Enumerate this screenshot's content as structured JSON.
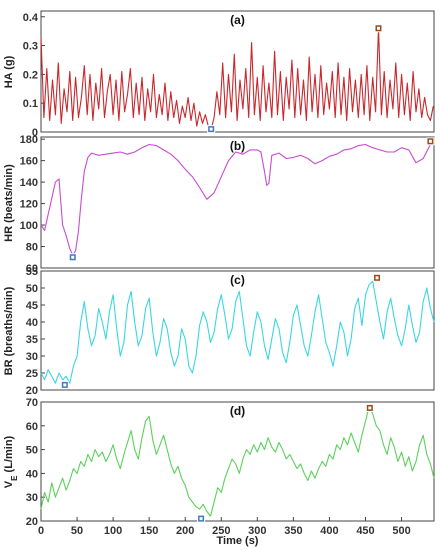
{
  "chart_data": [
    {
      "type": "line",
      "panel_label": "(a)",
      "ylabel": "HA (g)",
      "xlim": [
        0,
        545
      ],
      "ylim": [
        0,
        0.42
      ],
      "yticks": [
        0,
        0.1,
        0.2,
        0.3,
        0.4
      ],
      "color": "#c8282d",
      "series": [
        {
          "x": [
            0,
            4,
            8,
            12,
            16,
            20,
            24,
            28,
            32,
            36,
            40,
            44,
            48,
            52,
            56,
            60,
            64,
            68,
            72,
            76,
            80,
            84,
            88,
            92,
            96,
            100,
            104,
            108,
            112,
            116,
            120,
            124,
            128,
            132,
            136,
            140,
            144,
            148,
            152,
            156,
            160,
            164,
            168,
            172,
            176,
            180,
            184,
            188,
            192,
            196,
            200,
            204,
            208,
            212,
            216,
            220,
            224,
            228,
            232,
            236,
            240,
            244,
            248,
            252,
            256,
            260,
            264,
            268,
            272,
            276,
            280,
            284,
            288,
            292,
            296,
            300,
            304,
            308,
            312,
            316,
            320,
            324,
            328,
            332,
            336,
            340,
            344,
            348,
            352,
            356,
            360,
            364,
            368,
            372,
            376,
            380,
            384,
            388,
            392,
            396,
            400,
            404,
            408,
            412,
            416,
            420,
            424,
            428,
            432,
            436,
            440,
            444,
            448,
            452,
            456,
            460,
            464,
            468,
            472,
            476,
            480,
            484,
            488,
            492,
            496,
            500,
            504,
            508,
            512,
            516,
            520,
            524,
            528,
            532,
            536,
            540,
            544
          ],
          "y": [
            0.33,
            0.05,
            0.22,
            0.04,
            0.18,
            0.06,
            0.24,
            0.03,
            0.15,
            0.07,
            0.21,
            0.04,
            0.19,
            0.05,
            0.12,
            0.23,
            0.06,
            0.2,
            0.04,
            0.17,
            0.08,
            0.22,
            0.05,
            0.14,
            0.2,
            0.06,
            0.18,
            0.04,
            0.21,
            0.07,
            0.13,
            0.22,
            0.05,
            0.17,
            0.06,
            0.19,
            0.04,
            0.15,
            0.07,
            0.2,
            0.05,
            0.13,
            0.06,
            0.17,
            0.04,
            0.14,
            0.05,
            0.11,
            0.03,
            0.09,
            0.05,
            0.12,
            0.04,
            0.1,
            0.02,
            0.07,
            0.03,
            0.06,
            0.02,
            0.01,
            0.05,
            0.14,
            0.06,
            0.24,
            0.05,
            0.2,
            0.07,
            0.27,
            0.04,
            0.18,
            0.08,
            0.22,
            0.05,
            0.31,
            0.06,
            0.19,
            0.04,
            0.23,
            0.07,
            0.17,
            0.05,
            0.28,
            0.06,
            0.21,
            0.04,
            0.19,
            0.08,
            0.25,
            0.05,
            0.22,
            0.06,
            0.18,
            0.04,
            0.26,
            0.07,
            0.2,
            0.05,
            0.23,
            0.06,
            0.17,
            0.08,
            0.21,
            0.05,
            0.24,
            0.06,
            0.19,
            0.04,
            0.22,
            0.07,
            0.18,
            0.05,
            0.2,
            0.06,
            0.23,
            0.04,
            0.19,
            0.07,
            0.36,
            0.06,
            0.21,
            0.05,
            0.18,
            0.08,
            0.24,
            0.05,
            0.2,
            0.06,
            0.17,
            0.04,
            0.21,
            0.07,
            0.15,
            0.05,
            0.12,
            0.06,
            0.04,
            0.09
          ]
        }
      ],
      "markers": [
        {
          "x": 236,
          "y": 0.01,
          "color": "#3c78c8"
        },
        {
          "x": 468,
          "y": 0.36,
          "color": "#9a4a1a"
        }
      ]
    },
    {
      "type": "line",
      "panel_label": "(b)",
      "ylabel": "HR (beats/min)",
      "xlim": [
        0,
        545
      ],
      "ylim": [
        60,
        182
      ],
      "yticks": [
        60,
        80,
        100,
        120,
        140,
        160,
        180
      ],
      "color": "#c84bd2",
      "series": [
        {
          "x": [
            0,
            5,
            10,
            15,
            20,
            25,
            30,
            35,
            40,
            44,
            48,
            52,
            56,
            60,
            65,
            70,
            80,
            90,
            100,
            110,
            120,
            130,
            140,
            150,
            160,
            170,
            180,
            190,
            200,
            210,
            220,
            230,
            240,
            250,
            260,
            270,
            280,
            290,
            300,
            305,
            310,
            313,
            316,
            320,
            330,
            340,
            350,
            360,
            370,
            380,
            390,
            400,
            410,
            420,
            430,
            440,
            450,
            460,
            470,
            480,
            490,
            500,
            510,
            520,
            530,
            540,
            545
          ],
          "y": [
            100,
            95,
            110,
            125,
            140,
            143,
            100,
            90,
            78,
            72,
            76,
            95,
            125,
            150,
            163,
            167,
            165,
            166,
            167,
            168,
            166,
            168,
            172,
            175,
            174,
            170,
            166,
            160,
            152,
            145,
            135,
            124,
            130,
            145,
            160,
            168,
            166,
            170,
            170,
            168,
            150,
            137,
            139,
            165,
            167,
            162,
            163,
            165,
            162,
            157,
            160,
            164,
            166,
            170,
            171,
            174,
            175,
            172,
            170,
            168,
            168,
            172,
            170,
            158,
            162,
            175,
            178
          ]
        }
      ],
      "markers": [
        {
          "x": 44,
          "y": 70,
          "color": "#3c78c8"
        },
        {
          "x": 540,
          "y": 178,
          "color": "#9a4a1a"
        }
      ]
    },
    {
      "type": "line",
      "panel_label": "(c)",
      "ylabel": "BR (breaths/min)",
      "xlim": [
        0,
        545
      ],
      "ylim": [
        20,
        55
      ],
      "yticks": [
        20,
        25,
        30,
        35,
        40,
        45,
        50,
        55
      ],
      "color": "#3ad7e0",
      "series": [
        {
          "x": [
            0,
            5,
            10,
            15,
            20,
            25,
            30,
            35,
            40,
            45,
            50,
            55,
            60,
            65,
            70,
            75,
            80,
            85,
            90,
            95,
            100,
            105,
            110,
            115,
            120,
            125,
            130,
            135,
            140,
            145,
            150,
            155,
            160,
            165,
            170,
            175,
            180,
            185,
            190,
            195,
            200,
            205,
            210,
            215,
            220,
            225,
            230,
            235,
            240,
            245,
            250,
            255,
            260,
            265,
            270,
            275,
            280,
            285,
            290,
            295,
            300,
            305,
            310,
            315,
            320,
            325,
            330,
            335,
            340,
            345,
            350,
            355,
            360,
            365,
            370,
            375,
            380,
            385,
            390,
            395,
            400,
            405,
            410,
            415,
            420,
            425,
            430,
            435,
            440,
            445,
            450,
            455,
            460,
            465,
            470,
            475,
            480,
            485,
            490,
            495,
            500,
            505,
            510,
            515,
            520,
            525,
            530,
            535,
            540,
            545
          ],
          "y": [
            25,
            23,
            26,
            24,
            22,
            25,
            23,
            24,
            22,
            27,
            30,
            40,
            46,
            38,
            33,
            36,
            44,
            40,
            35,
            43,
            48,
            38,
            30,
            34,
            45,
            49,
            40,
            33,
            36,
            44,
            47,
            37,
            30,
            34,
            41,
            38,
            31,
            27,
            30,
            38,
            35,
            27,
            25,
            30,
            39,
            43,
            40,
            34,
            37,
            44,
            48,
            42,
            35,
            38,
            46,
            49,
            41,
            33,
            30,
            37,
            43,
            40,
            33,
            29,
            35,
            41,
            38,
            31,
            28,
            34,
            42,
            45,
            39,
            33,
            30,
            36,
            43,
            48,
            41,
            34,
            31,
            27,
            33,
            40,
            37,
            30,
            35,
            44,
            47,
            39,
            48,
            51,
            52,
            46,
            40,
            35,
            43,
            47,
            41,
            36,
            33,
            38,
            45,
            39,
            34,
            37,
            46,
            50,
            44,
            40
          ]
        }
      ],
      "markers": [
        {
          "x": 33,
          "y": 21.5,
          "color": "#3c78c8"
        },
        {
          "x": 466,
          "y": 53,
          "color": "#9a4a1a"
        }
      ]
    },
    {
      "type": "line",
      "panel_label": "(d)",
      "ylabel": "V_E (L/min)",
      "xlabel": "Time (s)",
      "xlim": [
        0,
        545
      ],
      "ylim": [
        20,
        70
      ],
      "yticks": [
        20,
        30,
        40,
        50,
        60,
        70
      ],
      "xticks": [
        0,
        50,
        100,
        150,
        200,
        250,
        300,
        350,
        400,
        450,
        500
      ],
      "color": "#5ad25a",
      "series": [
        {
          "x": [
            0,
            5,
            10,
            15,
            20,
            25,
            30,
            35,
            40,
            45,
            50,
            55,
            60,
            65,
            70,
            75,
            80,
            85,
            90,
            95,
            100,
            105,
            110,
            115,
            120,
            125,
            130,
            135,
            140,
            145,
            150,
            155,
            160,
            165,
            170,
            175,
            180,
            185,
            190,
            195,
            200,
            205,
            210,
            215,
            220,
            225,
            230,
            235,
            240,
            245,
            250,
            255,
            260,
            265,
            270,
            275,
            280,
            285,
            290,
            295,
            300,
            305,
            310,
            315,
            320,
            325,
            330,
            335,
            340,
            345,
            350,
            355,
            360,
            365,
            370,
            375,
            380,
            385,
            390,
            395,
            400,
            405,
            410,
            415,
            420,
            425,
            430,
            435,
            440,
            445,
            450,
            455,
            460,
            465,
            470,
            475,
            480,
            485,
            490,
            495,
            500,
            505,
            510,
            515,
            520,
            525,
            530,
            535,
            540,
            545
          ],
          "y": [
            25,
            32,
            28,
            36,
            30,
            34,
            38,
            33,
            37,
            42,
            40,
            45,
            43,
            48,
            45,
            50,
            47,
            49,
            45,
            48,
            52,
            46,
            42,
            48,
            53,
            58,
            50,
            46,
            55,
            62,
            64,
            54,
            48,
            52,
            56,
            50,
            44,
            40,
            43,
            38,
            35,
            30,
            28,
            26,
            25,
            27,
            24,
            22,
            28,
            34,
            32,
            38,
            42,
            46,
            44,
            40,
            46,
            50,
            48,
            52,
            49,
            53,
            50,
            55,
            51,
            49,
            53,
            50,
            46,
            48,
            45,
            42,
            44,
            40,
            37,
            41,
            38,
            42,
            45,
            43,
            48,
            46,
            52,
            50,
            55,
            52,
            57,
            53,
            49,
            56,
            62,
            68,
            65,
            60,
            58,
            52,
            48,
            55,
            51,
            45,
            49,
            43,
            47,
            41,
            45,
            52,
            56,
            48,
            44,
            38
          ]
        }
      ],
      "markers": [
        {
          "x": 222,
          "y": 21,
          "color": "#3c78c8"
        },
        {
          "x": 456,
          "y": 67.5,
          "color": "#9a4a1a"
        }
      ]
    }
  ]
}
